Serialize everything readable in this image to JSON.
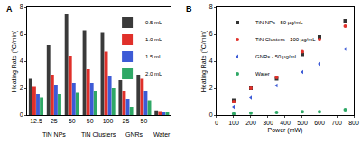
{
  "chart_data": [
    {
      "type": "bar",
      "title": "A",
      "categories": [
        "12.5",
        "25",
        "50",
        "50",
        "100",
        "25",
        "50",
        null
      ],
      "category_groups": [
        "TiN NPs",
        "TiN NPs",
        "TiN NPs",
        "TiN Clusters",
        "TiN Clusters",
        "GNRs",
        "GNRs",
        "Water"
      ],
      "y_label": "Heating Rate (°C/min)",
      "ylim": [
        0,
        8
      ],
      "yticks": [
        0,
        2,
        4,
        6,
        8
      ],
      "legend": "top right",
      "series": [
        {
          "name": "0.5 mL",
          "color": "#3a3a3a",
          "values": [
            2.7,
            5.2,
            7.5,
            6.3,
            6.1,
            2.6,
            3.0,
            0.35
          ]
        },
        {
          "name": "1.0 mL",
          "color": "#e0302a",
          "values": [
            2.1,
            3.0,
            4.4,
            3.4,
            4.7,
            1.8,
            2.7,
            0.3
          ]
        },
        {
          "name": "1.5 mL",
          "color": "#3d5bd6",
          "values": [
            1.6,
            2.2,
            2.4,
            2.4,
            2.9,
            1.2,
            1.8,
            0.25
          ]
        },
        {
          "name": "2.0 mL",
          "color": "#2fa866",
          "values": [
            1.3,
            1.6,
            1.7,
            1.8,
            2.0,
            0.6,
            1.1,
            0.2
          ]
        }
      ]
    },
    {
      "type": "scatter",
      "title": "B",
      "x": [
        100,
        200,
        350,
        500,
        600,
        750
      ],
      "x_label": "Power (mW)",
      "y_label": "Heating Rate (°C/min)",
      "xlim": [
        0,
        800
      ],
      "xticks": [
        0,
        100,
        200,
        300,
        400,
        500,
        600,
        700,
        800
      ],
      "ylim": [
        0,
        8
      ],
      "yticks": [
        0,
        2,
        4,
        6,
        8
      ],
      "legend": "top left",
      "series": [
        {
          "name": "TiN NPs - 50 µg/mL",
          "color": "#333333",
          "marker": "square",
          "values": [
            1.1,
            2.0,
            2.7,
            4.5,
            5.8,
            7.0
          ]
        },
        {
          "name": "TiN Clusters - 100 µg/mL",
          "color": "#e0302a",
          "marker": "circle",
          "values": [
            1.0,
            2.0,
            2.8,
            4.7,
            5.6,
            6.6
          ]
        },
        {
          "name": "GNRs - 50 µg/mL",
          "color": "#3d5bd6",
          "marker": "triangle-left",
          "values": [
            0.6,
            1.3,
            2.2,
            3.2,
            3.8,
            4.9
          ]
        },
        {
          "name": "Water",
          "color": "#2fa866",
          "marker": "circle",
          "values": [
            0.1,
            0.15,
            0.2,
            0.25,
            0.25,
            0.4
          ]
        }
      ]
    }
  ]
}
